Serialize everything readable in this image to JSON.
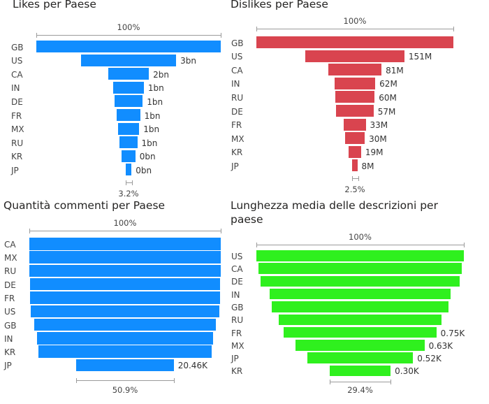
{
  "chart_data": [
    {
      "type": "funnel",
      "title": "Likes per Paese",
      "color": "#118DFF",
      "top_label": "100%",
      "bottom_label": "3.2%",
      "categories": [
        "GB",
        "US",
        "CA",
        "IN",
        "DE",
        "FR",
        "MX",
        "RU",
        "KR",
        "JP"
      ],
      "values": [
        100,
        51.6,
        22.1,
        16.6,
        15.3,
        12.6,
        11.6,
        9.5,
        7.4,
        3.2
      ],
      "labels": [
        "",
        "3bn",
        "2bn",
        "1bn",
        "1bn",
        "1bn",
        "1bn",
        "1bn",
        "0bn",
        "0bn"
      ]
    },
    {
      "type": "funnel",
      "title": "Dislikes per Paese",
      "color": "#D9444F",
      "top_label": "100%",
      "bottom_label": "2.5%",
      "categories": [
        "GB",
        "US",
        "CA",
        "IN",
        "RU",
        "DE",
        "FR",
        "MX",
        "KR",
        "JP"
      ],
      "values": [
        100,
        50.3,
        27.0,
        20.7,
        20.0,
        19.0,
        11.0,
        10.0,
        6.3,
        2.5
      ],
      "labels": [
        "",
        "151M",
        "81M",
        "62M",
        "60M",
        "57M",
        "33M",
        "30M",
        "19M",
        "8M"
      ]
    },
    {
      "type": "funnel",
      "title": "Quantità commenti per Paese",
      "color": "#118DFF",
      "top_label": "100%",
      "bottom_label": "50.9%",
      "categories": [
        "CA",
        "MX",
        "RU",
        "DE",
        "FR",
        "US",
        "GB",
        "IN",
        "KR",
        "JP"
      ],
      "values": [
        100,
        100,
        100,
        99.6,
        99.3,
        98.2,
        94.9,
        92.0,
        90.2,
        50.9
      ],
      "labels": [
        "",
        "",
        "",
        "",
        "",
        "",
        "",
        "",
        "",
        "20.46K"
      ]
    },
    {
      "type": "funnel",
      "title": "Lunghezza media delle descrizioni per paese",
      "title_lines": [
        "Lunghezza media delle descrizioni per",
        "paese"
      ],
      "color": "#2FF01E",
      "top_label": "100%",
      "bottom_label": "29.4%",
      "categories": [
        "US",
        "CA",
        "DE",
        "IN",
        "GB",
        "RU",
        "FR",
        "MX",
        "JP",
        "KR"
      ],
      "values": [
        100,
        98.3,
        95.7,
        87.0,
        85.0,
        78.5,
        73.5,
        62.0,
        51.0,
        29.4
      ],
      "labels": [
        "",
        "",
        "",
        "",
        "",
        "",
        "0.75K",
        "0.63K",
        "0.52K",
        "0.30K"
      ]
    }
  ]
}
